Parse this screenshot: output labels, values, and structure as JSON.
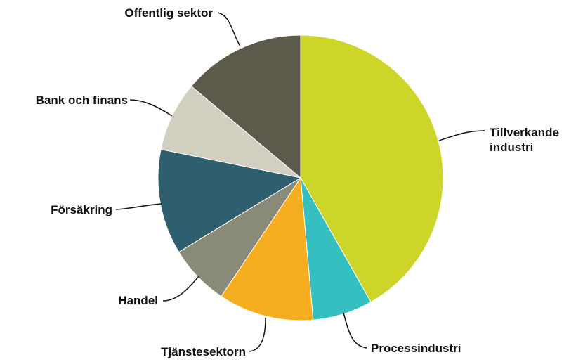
{
  "chart_data": {
    "type": "pie",
    "categories": [
      "Tillverkande industri",
      "Processindustri",
      "Tjänstesektorn",
      "Handel",
      "Försäkring",
      "Bank och finans",
      "Offentlig sektor"
    ],
    "values": [
      41.8,
      6.8,
      10.8,
      6.9,
      11.9,
      7.9,
      13.9
    ],
    "colors": [
      "#cdd529",
      "#35bfc1",
      "#f6ae20",
      "#8a8a78",
      "#2f5f6e",
      "#d1cfc0",
      "#5b5a4b"
    ]
  }
}
